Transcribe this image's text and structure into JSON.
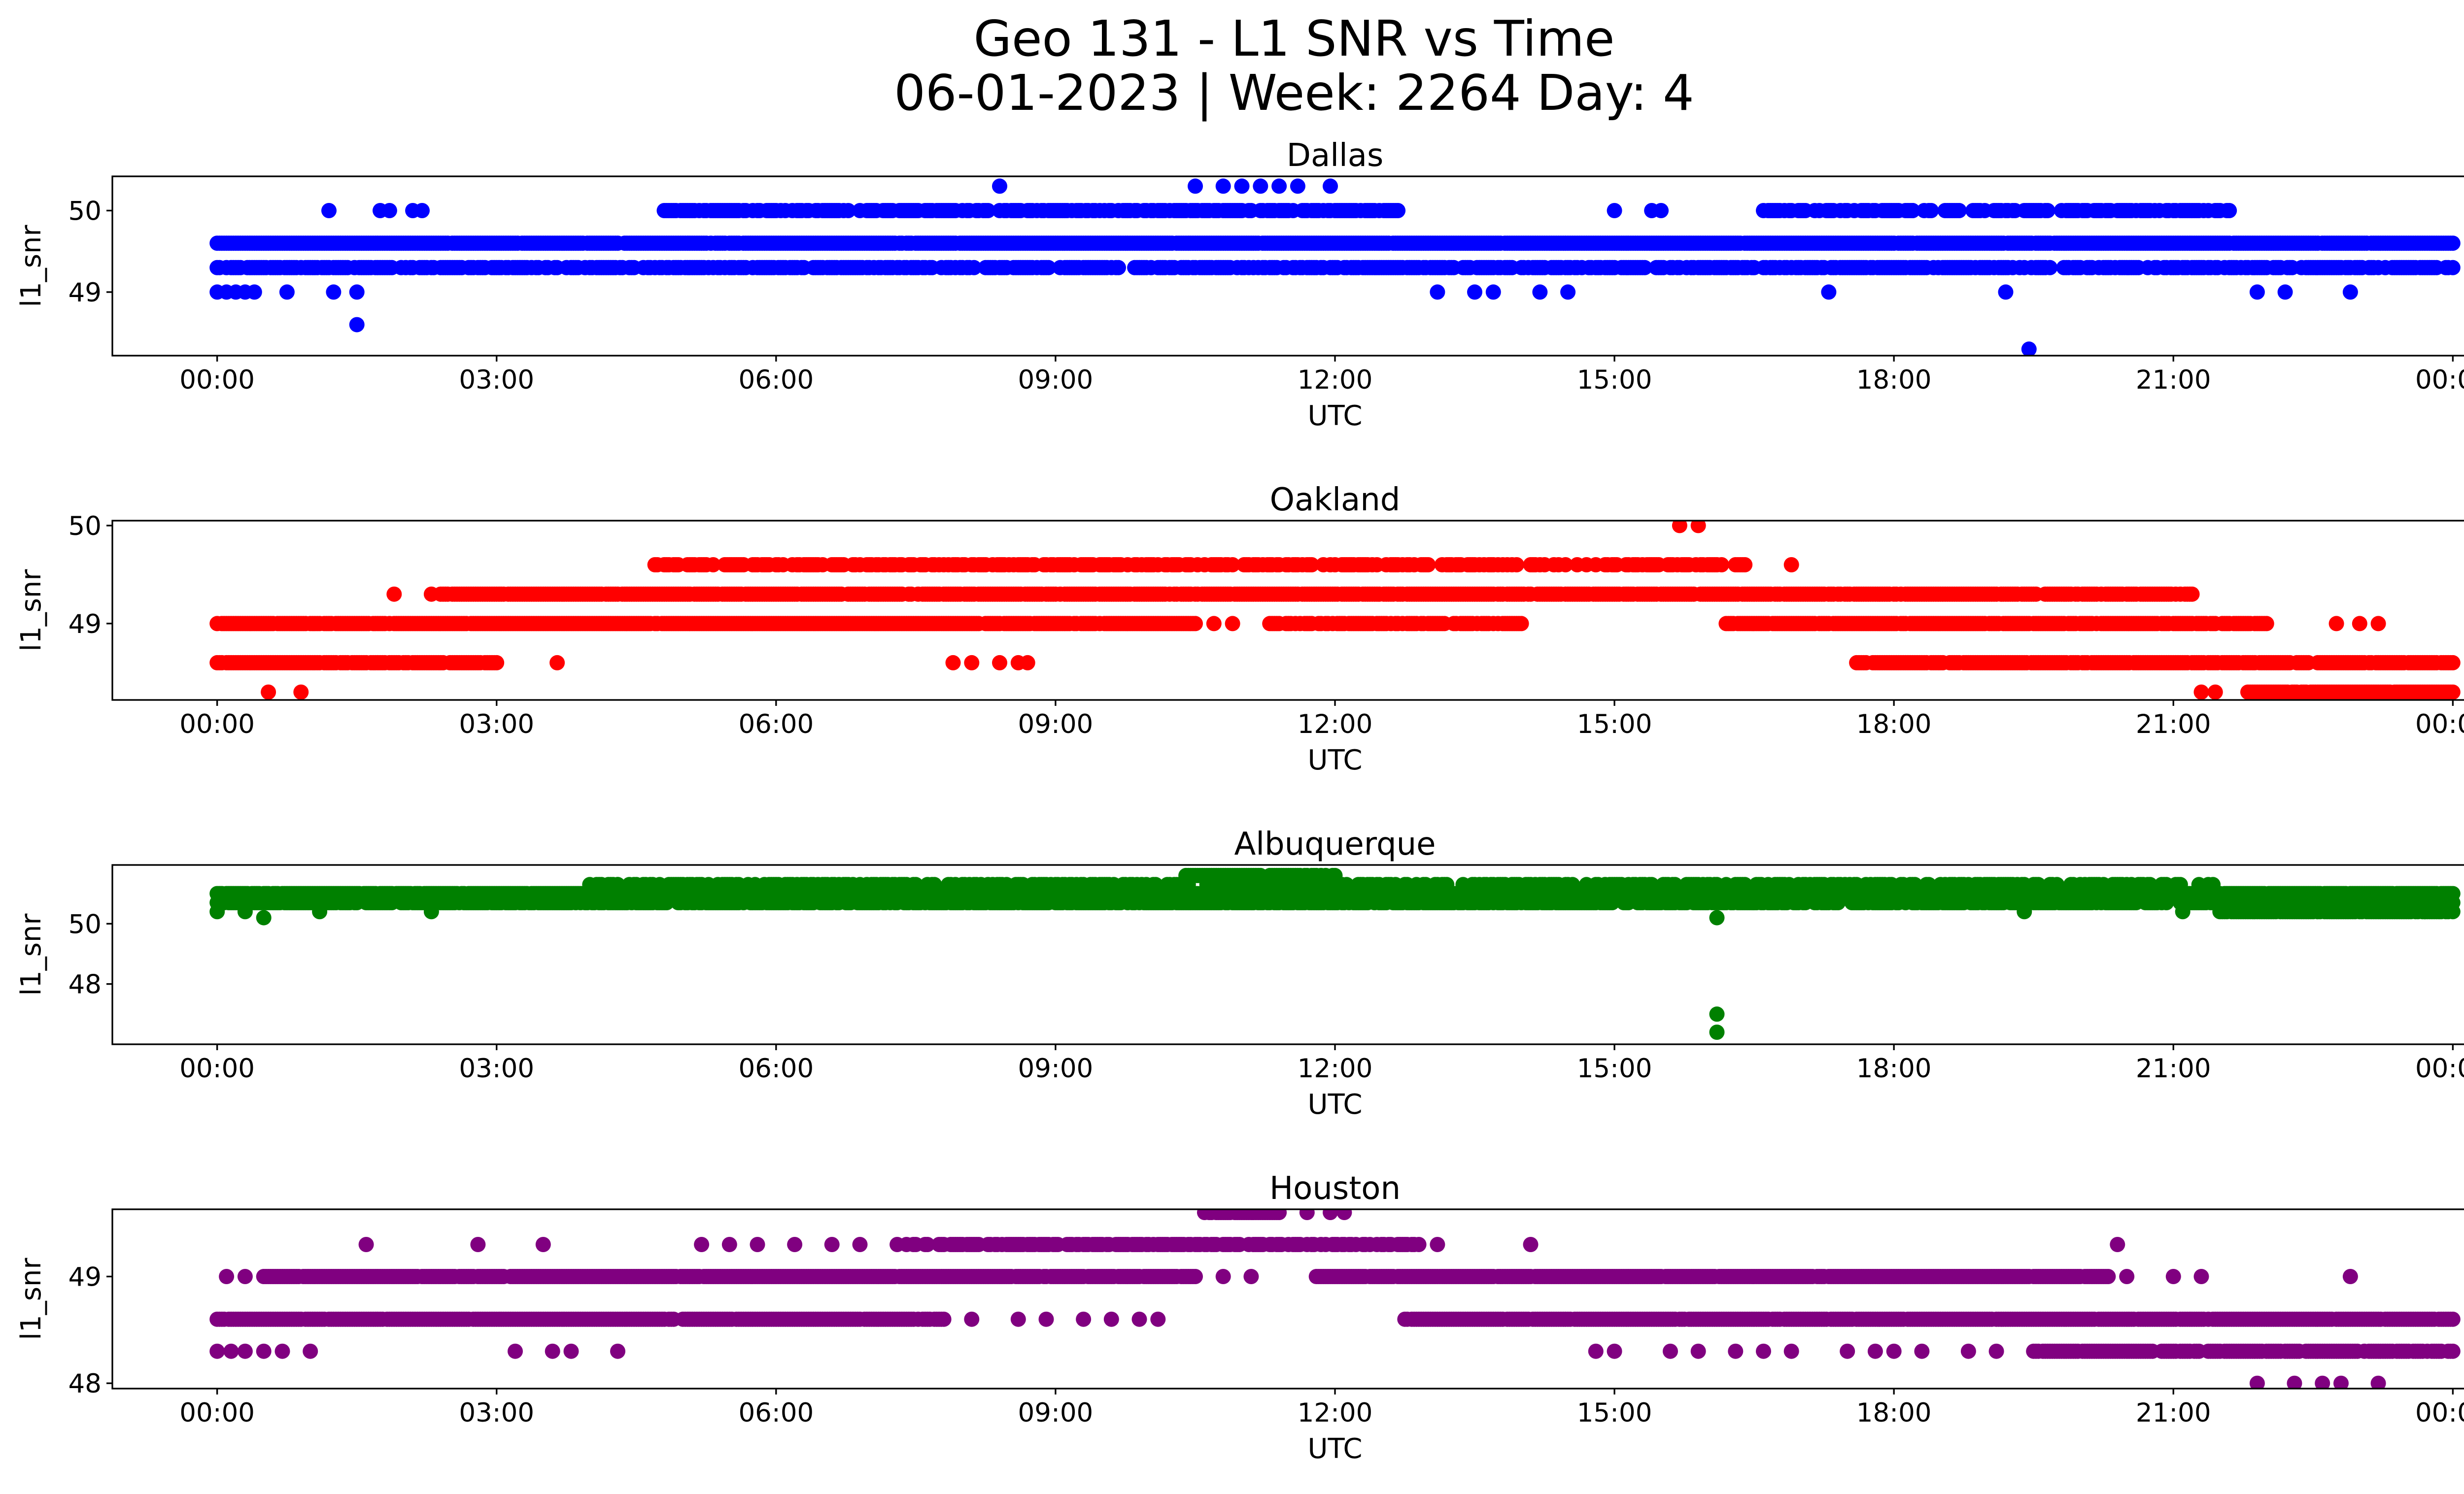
{
  "figure": {
    "title_line1": "Geo 131 - L1 SNR vs Time",
    "title_line2": "06-01-2023 | Week: 2264 Day: 4"
  },
  "chart_data": [
    {
      "type": "scatter",
      "title": "Dallas",
      "xlabel": "UTC",
      "ylabel": "l1_snr",
      "color": "#0000ff",
      "xlim_hours": [
        -1.125,
        25.125
      ],
      "ylim": [
        48.22,
        50.42
      ],
      "x_tick_labels": [
        "00:00",
        "03:00",
        "06:00",
        "09:00",
        "12:00",
        "15:00",
        "18:00",
        "21:00",
        "00:00"
      ],
      "y_ticks": [
        49,
        50
      ],
      "bands": [
        {
          "y": 49.6,
          "x": [
            0.0,
            24.0
          ],
          "density": 0.98
        },
        {
          "y": 49.3,
          "x": [
            0.0,
            24.0
          ],
          "density": 0.75
        },
        {
          "y": 50.0,
          "x": [
            4.8,
            12.7
          ],
          "density": 0.7
        },
        {
          "y": 50.0,
          "x": [
            16.6,
            21.6
          ],
          "density": 0.6
        }
      ],
      "points": [
        [
          0.0,
          49.0
        ],
        [
          0.1,
          49.0
        ],
        [
          0.2,
          49.0
        ],
        [
          0.3,
          49.0
        ],
        [
          0.4,
          49.0
        ],
        [
          0.75,
          49.0
        ],
        [
          1.2,
          50.0
        ],
        [
          1.25,
          49.0
        ],
        [
          1.5,
          49.0
        ],
        [
          1.5,
          48.6
        ],
        [
          1.75,
          50.0
        ],
        [
          1.85,
          50.0
        ],
        [
          2.1,
          50.0
        ],
        [
          2.2,
          50.0
        ],
        [
          8.4,
          50.3
        ],
        [
          10.5,
          50.3
        ],
        [
          10.8,
          50.3
        ],
        [
          11.0,
          50.3
        ],
        [
          11.2,
          50.3
        ],
        [
          11.4,
          50.3
        ],
        [
          11.6,
          50.3
        ],
        [
          11.95,
          50.3
        ],
        [
          13.1,
          49.0
        ],
        [
          13.5,
          49.0
        ],
        [
          13.7,
          49.0
        ],
        [
          14.2,
          49.0
        ],
        [
          14.5,
          49.0
        ],
        [
          15.0,
          50.0
        ],
        [
          15.4,
          50.0
        ],
        [
          15.5,
          50.0
        ],
        [
          17.3,
          49.0
        ],
        [
          18.2,
          50.0
        ],
        [
          18.6,
          50.0
        ],
        [
          18.7,
          50.0
        ],
        [
          19.2,
          49.0
        ],
        [
          19.45,
          48.3
        ],
        [
          21.9,
          49.0
        ],
        [
          22.2,
          49.0
        ],
        [
          22.9,
          49.0
        ]
      ]
    },
    {
      "type": "scatter",
      "title": "Oakland",
      "xlabel": "UTC",
      "ylabel": "l1_snr",
      "color": "#ff0000",
      "xlim_hours": [
        -1.125,
        25.125
      ],
      "ylim": [
        48.22,
        50.05
      ],
      "x_tick_labels": [
        "00:00",
        "03:00",
        "06:00",
        "09:00",
        "12:00",
        "15:00",
        "18:00",
        "21:00",
        "00:00"
      ],
      "y_ticks": [
        49,
        50
      ],
      "bands": [
        {
          "y": 49.0,
          "x": [
            0.0,
            10.5
          ],
          "density": 0.95
        },
        {
          "y": 49.0,
          "x": [
            11.3,
            14.0
          ],
          "density": 0.8
        },
        {
          "y": 49.0,
          "x": [
            16.2,
            22.0
          ],
          "density": 0.9
        },
        {
          "y": 48.6,
          "x": [
            0.0,
            3.0
          ],
          "density": 0.9
        },
        {
          "y": 48.6,
          "x": [
            17.6,
            24.0
          ],
          "density": 0.9
        },
        {
          "y": 49.3,
          "x": [
            2.4,
            21.2
          ],
          "density": 0.9
        },
        {
          "y": 49.6,
          "x": [
            4.7,
            16.4
          ],
          "density": 0.6
        },
        {
          "y": 48.3,
          "x": [
            21.8,
            24.0
          ],
          "density": 0.95
        }
      ],
      "points": [
        [
          0.55,
          48.3
        ],
        [
          0.9,
          48.3
        ],
        [
          1.9,
          49.3
        ],
        [
          2.3,
          49.3
        ],
        [
          3.65,
          48.6
        ],
        [
          7.9,
          48.6
        ],
        [
          8.1,
          48.6
        ],
        [
          8.4,
          48.6
        ],
        [
          8.6,
          48.6
        ],
        [
          8.7,
          48.6
        ],
        [
          10.7,
          49.0
        ],
        [
          10.9,
          49.0
        ],
        [
          15.7,
          50.0
        ],
        [
          15.9,
          50.0
        ],
        [
          16.9,
          49.6
        ],
        [
          21.3,
          48.3
        ],
        [
          21.45,
          48.3
        ],
        [
          22.75,
          49.0
        ],
        [
          23.0,
          49.0
        ],
        [
          23.2,
          49.0
        ]
      ]
    },
    {
      "type": "scatter",
      "title": "Albuquerque",
      "xlabel": "UTC",
      "ylabel": "l1_snr",
      "color": "#008000",
      "xlim_hours": [
        -1.125,
        25.125
      ],
      "ylim": [
        46.0,
        51.95
      ],
      "x_tick_labels": [
        "00:00",
        "03:00",
        "06:00",
        "09:00",
        "12:00",
        "15:00",
        "18:00",
        "21:00",
        "00:00"
      ],
      "y_ticks": [
        48,
        50
      ],
      "bands": [
        {
          "y": 51.0,
          "x": [
            0.0,
            24.0
          ],
          "density": 0.95
        },
        {
          "y": 50.7,
          "x": [
            0.0,
            24.0
          ],
          "density": 0.8
        },
        {
          "y": 51.3,
          "x": [
            4.0,
            21.5
          ],
          "density": 0.55
        },
        {
          "y": 51.6,
          "x": [
            10.4,
            12.0
          ],
          "density": 0.9
        },
        {
          "y": 50.4,
          "x": [
            21.5,
            24.0
          ],
          "density": 0.9
        }
      ],
      "points": [
        [
          0.0,
          50.4
        ],
        [
          0.3,
          50.4
        ],
        [
          0.5,
          50.2
        ],
        [
          1.1,
          50.4
        ],
        [
          2.3,
          50.4
        ],
        [
          4.3,
          51.3
        ],
        [
          16.1,
          50.2
        ],
        [
          16.1,
          47.0
        ],
        [
          16.1,
          46.4
        ],
        [
          19.4,
          50.4
        ],
        [
          21.1,
          50.4
        ],
        [
          23.7,
          50.4
        ]
      ]
    },
    {
      "type": "scatter",
      "title": "Houston",
      "xlabel": "UTC",
      "ylabel": "l1_snr",
      "color": "#800080",
      "xlim_hours": [
        -1.125,
        25.125
      ],
      "ylim": [
        47.95,
        49.63
      ],
      "x_tick_labels": [
        "00:00",
        "03:00",
        "06:00",
        "09:00",
        "12:00",
        "15:00",
        "18:00",
        "21:00",
        "00:00"
      ],
      "y_ticks": [
        48,
        49
      ],
      "bands": [
        {
          "y": 48.6,
          "x": [
            0.0,
            7.8
          ],
          "density": 0.95
        },
        {
          "y": 48.6,
          "x": [
            12.75,
            24.0
          ],
          "density": 0.95
        },
        {
          "y": 49.0,
          "x": [
            0.5,
            10.5
          ],
          "density": 0.95
        },
        {
          "y": 49.0,
          "x": [
            11.8,
            20.3
          ],
          "density": 0.95
        },
        {
          "y": 49.3,
          "x": [
            7.4,
            12.9
          ],
          "density": 0.7
        },
        {
          "y": 48.3,
          "x": [
            19.5,
            24.0
          ],
          "density": 0.85
        },
        {
          "y": 49.6,
          "x": [
            10.6,
            11.4
          ],
          "density": 0.9
        }
      ],
      "points": [
        [
          0.0,
          48.3
        ],
        [
          0.15,
          48.3
        ],
        [
          0.3,
          48.3
        ],
        [
          0.5,
          48.3
        ],
        [
          0.7,
          48.3
        ],
        [
          1.0,
          48.3
        ],
        [
          0.1,
          49.0
        ],
        [
          0.3,
          49.0
        ],
        [
          1.6,
          49.3
        ],
        [
          2.8,
          49.3
        ],
        [
          3.5,
          49.3
        ],
        [
          3.2,
          48.3
        ],
        [
          3.6,
          48.3
        ],
        [
          3.8,
          48.3
        ],
        [
          4.3,
          48.3
        ],
        [
          5.2,
          49.3
        ],
        [
          5.5,
          49.3
        ],
        [
          5.8,
          49.3
        ],
        [
          6.2,
          49.3
        ],
        [
          6.6,
          49.3
        ],
        [
          6.9,
          49.3
        ],
        [
          7.3,
          49.3
        ],
        [
          8.1,
          48.6
        ],
        [
          8.6,
          48.6
        ],
        [
          8.9,
          48.6
        ],
        [
          9.3,
          48.6
        ],
        [
          9.6,
          48.6
        ],
        [
          9.9,
          48.6
        ],
        [
          10.1,
          48.6
        ],
        [
          10.8,
          49.0
        ],
        [
          11.1,
          49.0
        ],
        [
          11.7,
          49.6
        ],
        [
          11.95,
          49.6
        ],
        [
          12.1,
          49.6
        ],
        [
          13.1,
          49.3
        ],
        [
          14.1,
          49.3
        ],
        [
          14.8,
          48.3
        ],
        [
          15.0,
          48.3
        ],
        [
          15.6,
          48.3
        ],
        [
          15.9,
          48.3
        ],
        [
          16.3,
          48.3
        ],
        [
          16.6,
          48.3
        ],
        [
          16.9,
          48.3
        ],
        [
          17.5,
          48.3
        ],
        [
          17.8,
          48.3
        ],
        [
          18.0,
          48.3
        ],
        [
          18.3,
          48.3
        ],
        [
          18.8,
          48.3
        ],
        [
          19.1,
          48.3
        ],
        [
          20.4,
          49.3
        ],
        [
          20.5,
          49.0
        ],
        [
          21.0,
          49.0
        ],
        [
          21.3,
          49.0
        ],
        [
          21.9,
          48.0
        ],
        [
          22.3,
          48.0
        ],
        [
          22.6,
          48.0
        ],
        [
          22.8,
          48.0
        ],
        [
          22.9,
          49.0
        ],
        [
          23.2,
          48.0
        ]
      ]
    }
  ]
}
